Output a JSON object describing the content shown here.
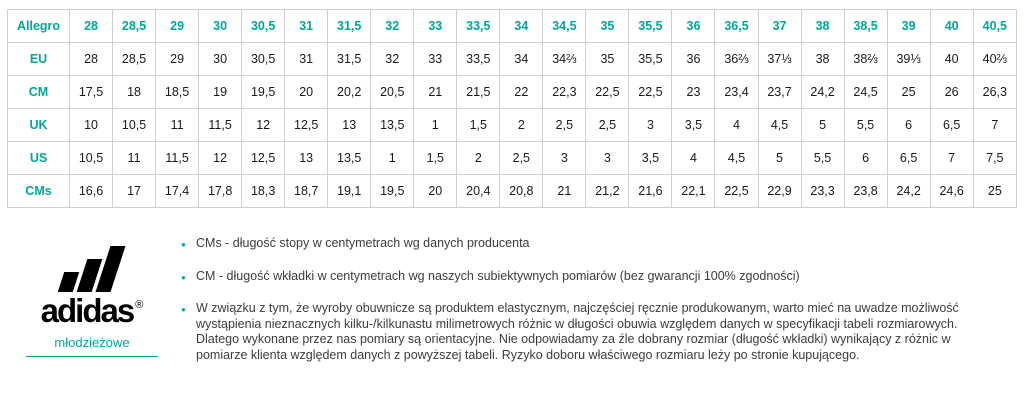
{
  "colors": {
    "accent": "#00a79b",
    "table_border": "#cfcfcf",
    "logo_black": "#000000",
    "note_text": "#3c3c3c"
  },
  "size_table": {
    "rows": [
      {
        "label": "Allegro",
        "values": [
          "28",
          "28,5",
          "29",
          "30",
          "30,5",
          "31",
          "31,5",
          "32",
          "33",
          "33,5",
          "34",
          "34,5",
          "35",
          "35,5",
          "36",
          "36,5",
          "37",
          "38",
          "38,5",
          "39",
          "40",
          "40,5"
        ]
      },
      {
        "label": "EU",
        "values": [
          "28",
          "28,5",
          "29",
          "30",
          "30,5",
          "31",
          "31,5",
          "32",
          "33",
          "33,5",
          "34",
          "34⅔",
          "35",
          "35,5",
          "36",
          "36⅔",
          "37⅓",
          "38",
          "38⅔",
          "39⅓",
          "40",
          "40⅔"
        ]
      },
      {
        "label": "CM",
        "values": [
          "17,5",
          "18",
          "18,5",
          "19",
          "19,5",
          "20",
          "20,2",
          "20,5",
          "21",
          "21,5",
          "22",
          "22,3",
          "22,5",
          "22,5",
          "23",
          "23,4",
          "23,7",
          "24,2",
          "24,5",
          "25",
          "26",
          "26,3"
        ]
      },
      {
        "label": "UK",
        "values": [
          "10",
          "10,5",
          "11",
          "11,5",
          "12",
          "12,5",
          "13",
          "13,5",
          "1",
          "1,5",
          "2",
          "2,5",
          "2,5",
          "3",
          "3,5",
          "4",
          "4,5",
          "5",
          "5,5",
          "6",
          "6,5",
          "7"
        ]
      },
      {
        "label": "US",
        "values": [
          "10,5",
          "11",
          "11,5",
          "12",
          "12,5",
          "13",
          "13,5",
          "1",
          "1,5",
          "2",
          "2,5",
          "3",
          "3",
          "3,5",
          "4",
          "4,5",
          "5",
          "5,5",
          "6",
          "6,5",
          "7",
          "7,5"
        ]
      },
      {
        "label": "CMs",
        "values": [
          "16,6",
          "17",
          "17,4",
          "17,8",
          "18,3",
          "18,7",
          "19,1",
          "19,5",
          "20",
          "20,4",
          "20,8",
          "21",
          "21,2",
          "21,6",
          "22,1",
          "22,5",
          "22,9",
          "23,3",
          "23,8",
          "24,2",
          "24,6",
          "25"
        ]
      }
    ]
  },
  "brand": {
    "wordmark": "adidas",
    "registered": "®",
    "category": "młodzieżowe"
  },
  "notes": [
    "CMs - długość stopy w centymetrach wg danych producenta",
    "CM - długość wkładki w centymetrach wg naszych subiektywnych pomiarów (bez gwarancji 100% zgodności)",
    "W związku z tym, że wyroby obuwnicze są produktem elastycznym, najczęściej ręcznie produkowanym, warto mieć na uwadze możliwość wystąpienia nieznacznych kilku-/kilkunastu milimetrowych różnic w długości obuwia względem danych w specyfikacji tabeli rozmiarowych. Dlatego wykonane przez nas pomiary są orientacyjne. Nie odpowiadamy za źle dobrany rozmiar (długość wkładki) wynikający z różnic w pomiarze klienta względem danych z powyższej tabeli. Ryzyko doboru właściwego rozmiaru leży po stronie kupującego."
  ]
}
